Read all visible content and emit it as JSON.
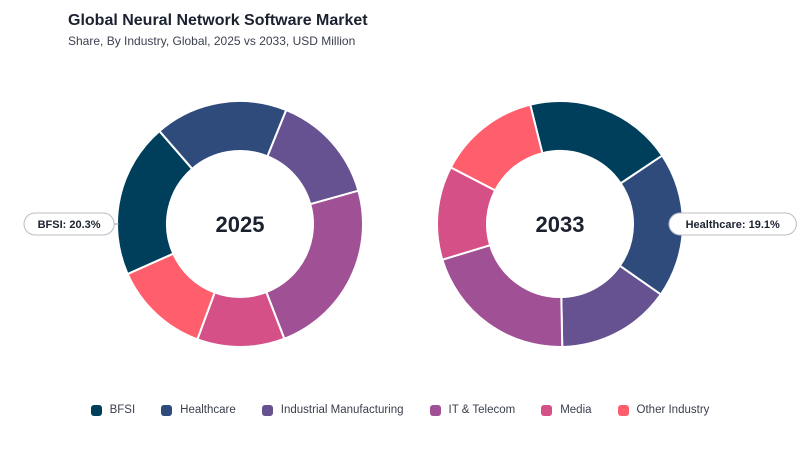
{
  "header": {
    "title": "Global Neural Network Software Market",
    "subtitle": "Share, By Industry, Global, 2025 vs 2033, USD Million"
  },
  "chart_data": [
    {
      "type": "pie",
      "variant": "donut",
      "center_label": "2025",
      "categories": [
        "BFSI",
        "Healthcare",
        "Industrial Manufacturing",
        "IT & Telecom",
        "Media",
        "Other Industry"
      ],
      "values": [
        20.3,
        17.5,
        14.5,
        23.5,
        11.5,
        12.7
      ],
      "colors": [
        "#003f5c",
        "#2f4b7c",
        "#665191",
        "#a05195",
        "#d45087",
        "#ff5f6d"
      ],
      "callout": {
        "category": "BFSI",
        "text": "BFSI: 20.3%",
        "side": "left"
      }
    },
    {
      "type": "pie",
      "variant": "donut",
      "center_label": "2033",
      "categories": [
        "BFSI",
        "Healthcare",
        "Industrial Manufacturing",
        "IT & Telecom",
        "Media",
        "Other Industry"
      ],
      "values": [
        19.5,
        19.1,
        15.0,
        20.6,
        12.3,
        13.5
      ],
      "colors": [
        "#003f5c",
        "#2f4b7c",
        "#665191",
        "#a05195",
        "#d45087",
        "#ff5f6d"
      ],
      "callout": {
        "category": "Healthcare",
        "text": "Healthcare: 19.1%",
        "side": "right"
      }
    }
  ],
  "legend": {
    "placement": "bottom-center",
    "items": [
      {
        "label": "BFSI",
        "color": "#003f5c"
      },
      {
        "label": "Healthcare",
        "color": "#2f4b7c"
      },
      {
        "label": "Industrial Manufacturing",
        "color": "#665191"
      },
      {
        "label": "IT & Telecom",
        "color": "#a05195"
      },
      {
        "label": "Media",
        "color": "#d45087"
      },
      {
        "label": "Other Industry",
        "color": "#ff5f6d"
      }
    ]
  }
}
